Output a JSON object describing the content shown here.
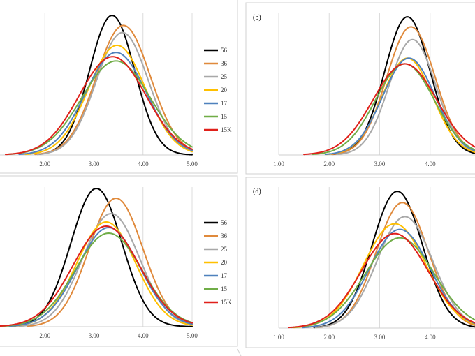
{
  "chart_data": [
    {
      "type": "line",
      "panel_label": "",
      "x_ticks": [
        "2.00",
        "3.00",
        "4.00",
        "5.00"
      ],
      "xlim": [
        1.0,
        5.0
      ],
      "legend": "right",
      "grid": "vertical",
      "series": [
        {
          "name": "56",
          "color": "#000000",
          "mean": 3.37,
          "sd": 0.46,
          "peak": 0.98
        },
        {
          "name": "36",
          "color": "#e08a3c",
          "mean": 3.6,
          "sd": 0.55,
          "peak": 0.91
        },
        {
          "name": "25",
          "color": "#a8a8a8",
          "mean": 3.58,
          "sd": 0.53,
          "peak": 0.86
        },
        {
          "name": "20",
          "color": "#ffc000",
          "mean": 3.47,
          "sd": 0.58,
          "peak": 0.77
        },
        {
          "name": "17",
          "color": "#4f81bd",
          "mean": 3.45,
          "sd": 0.62,
          "peak": 0.72
        },
        {
          "name": "15",
          "color": "#70ad47",
          "mean": 3.45,
          "sd": 0.7,
          "peak": 0.66
        },
        {
          "name": "15K",
          "color": "#e0201a",
          "mean": 3.38,
          "sd": 0.68,
          "peak": 0.69
        }
      ]
    },
    {
      "type": "line",
      "panel_label": "(b)",
      "x_ticks": [
        "1.00",
        "2.00",
        "3.00",
        "4.00"
      ],
      "xlim": [
        1.0,
        5.0
      ],
      "grid": "vertical",
      "series": [
        {
          "name": "56",
          "color": "#000000",
          "mean": 3.55,
          "sd": 0.45,
          "peak": 0.97
        },
        {
          "name": "36",
          "color": "#e08a3c",
          "mean": 3.62,
          "sd": 0.48,
          "peak": 0.9
        },
        {
          "name": "25",
          "color": "#a8a8a8",
          "mean": 3.65,
          "sd": 0.46,
          "peak": 0.81
        },
        {
          "name": "20",
          "color": "#ffc000",
          "mean": 3.55,
          "sd": 0.5,
          "peak": 0.68
        },
        {
          "name": "17",
          "color": "#4f81bd",
          "mean": 3.58,
          "sd": 0.52,
          "peak": 0.68
        },
        {
          "name": "15",
          "color": "#70ad47",
          "mean": 3.5,
          "sd": 0.58,
          "peak": 0.64
        },
        {
          "name": "15K",
          "color": "#e0201a",
          "mean": 3.5,
          "sd": 0.63,
          "peak": 0.64
        }
      ]
    },
    {
      "type": "line",
      "panel_label": "",
      "x_ticks": [
        "2.00",
        "3.00",
        "4.00",
        "5.00"
      ],
      "xlim": [
        1.0,
        5.0
      ],
      "legend": "right",
      "grid": "vertical",
      "series": [
        {
          "name": "56",
          "color": "#000000",
          "mean": 3.05,
          "sd": 0.52,
          "peak": 0.99
        },
        {
          "name": "36",
          "color": "#e08a3c",
          "mean": 3.45,
          "sd": 0.55,
          "peak": 0.92
        },
        {
          "name": "25",
          "color": "#a8a8a8",
          "mean": 3.35,
          "sd": 0.58,
          "peak": 0.81
        },
        {
          "name": "20",
          "color": "#ffc000",
          "mean": 3.25,
          "sd": 0.6,
          "peak": 0.75
        },
        {
          "name": "17",
          "color": "#4f81bd",
          "mean": 3.3,
          "sd": 0.63,
          "peak": 0.71
        },
        {
          "name": "15",
          "color": "#70ad47",
          "mean": 3.3,
          "sd": 0.68,
          "peak": 0.67
        },
        {
          "name": "15K",
          "color": "#e0201a",
          "mean": 3.25,
          "sd": 0.68,
          "peak": 0.72
        }
      ]
    },
    {
      "type": "line",
      "panel_label": "(d)",
      "x_ticks": [
        "1.00",
        "2.00",
        "3.00",
        "4.00"
      ],
      "xlim": [
        1.0,
        5.0
      ],
      "grid": "vertical",
      "series": [
        {
          "name": "56",
          "color": "#000000",
          "mean": 3.35,
          "sd": 0.5,
          "peak": 0.97
        },
        {
          "name": "36",
          "color": "#e08a3c",
          "mean": 3.45,
          "sd": 0.52,
          "peak": 0.89
        },
        {
          "name": "25",
          "color": "#a8a8a8",
          "mean": 3.5,
          "sd": 0.55,
          "peak": 0.79
        },
        {
          "name": "20",
          "color": "#ffc000",
          "mean": 3.3,
          "sd": 0.62,
          "peak": 0.74
        },
        {
          "name": "17",
          "color": "#4f81bd",
          "mean": 3.4,
          "sd": 0.6,
          "peak": 0.7
        },
        {
          "name": "15",
          "color": "#70ad47",
          "mean": 3.4,
          "sd": 0.68,
          "peak": 0.64
        },
        {
          "name": "15K",
          "color": "#e0201a",
          "mean": 3.3,
          "sd": 0.66,
          "peak": 0.67
        }
      ]
    }
  ]
}
